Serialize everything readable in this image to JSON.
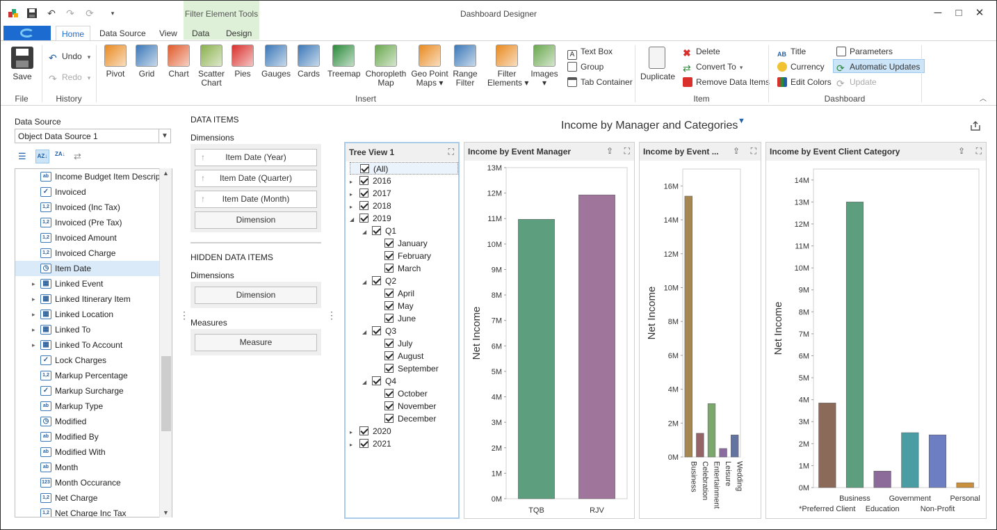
{
  "app": {
    "title": "Dashboard Designer",
    "context_group": "Filter Element Tools"
  },
  "tabs": [
    "Home",
    "Data Source",
    "View",
    "Data",
    "Design"
  ],
  "ribbon": {
    "save": "Save",
    "undo": "Undo",
    "redo": "Redo",
    "insert_items": [
      {
        "label": "Pivot"
      },
      {
        "label": "Grid"
      },
      {
        "label": "Chart"
      },
      {
        "label": "Scatter\nChart"
      },
      {
        "label": "Pies"
      },
      {
        "label": "Gauges"
      },
      {
        "label": "Cards"
      },
      {
        "label": "Treemap"
      },
      {
        "label": "Choropleth\nMap"
      },
      {
        "label": "Geo Point\nMaps ▾"
      },
      {
        "label": "Range\nFilter"
      },
      {
        "label": "Filter\nElements ▾"
      },
      {
        "label": "Images\n▾"
      }
    ],
    "text_box": "Text Box",
    "group": "Group",
    "tab_container": "Tab Container",
    "duplicate": "Duplicate",
    "delete": "Delete",
    "convert_to": "Convert To",
    "remove_data_items": "Remove Data Items",
    "title_btn": "Title",
    "currency": "Currency",
    "edit_colors": "Edit Colors",
    "parameters": "Parameters",
    "automatic_updates": "Automatic Updates",
    "update": "Update",
    "groups": {
      "file": "File",
      "history": "History",
      "insert": "Insert",
      "item": "Item",
      "dashboard": "Dashboard"
    }
  },
  "datasource": {
    "label": "Data Source",
    "value": "Object Data Source 1"
  },
  "fields": [
    {
      "label": "Income Budget Item Descript...",
      "icon": "ab"
    },
    {
      "label": "Invoiced",
      "icon": "check"
    },
    {
      "label": "Invoiced (Inc Tax)",
      "icon": "1,2"
    },
    {
      "label": "Invoiced (Pre Tax)",
      "icon": "1,2"
    },
    {
      "label": "Invoiced Amount",
      "icon": "1,2"
    },
    {
      "label": "Invoiced Charge",
      "icon": "1,2"
    },
    {
      "label": "Item Date",
      "icon": "clock"
    },
    {
      "label": "Linked Event",
      "icon": "table"
    },
    {
      "label": "Linked Itinerary Item",
      "icon": "table"
    },
    {
      "label": "Linked Location",
      "icon": "table"
    },
    {
      "label": "Linked To",
      "icon": "table"
    },
    {
      "label": "Linked To Account",
      "icon": "table"
    },
    {
      "label": "Lock Charges",
      "icon": "check"
    },
    {
      "label": "Markup Percentage",
      "icon": "1,2"
    },
    {
      "label": "Markup Surcharge",
      "icon": "check"
    },
    {
      "label": "Markup Type",
      "icon": "ab"
    },
    {
      "label": "Modified",
      "icon": "clock"
    },
    {
      "label": "Modified By",
      "icon": "ab"
    },
    {
      "label": "Modified With",
      "icon": "ab"
    },
    {
      "label": "Month",
      "icon": "ab"
    },
    {
      "label": "Month Occurance",
      "icon": "123"
    },
    {
      "label": "Net Charge",
      "icon": "1,2"
    },
    {
      "label": "Net Charge Inc Tax",
      "icon": "1,2"
    }
  ],
  "data_items": {
    "title": "DATA ITEMS",
    "dimensions_label": "Dimensions",
    "dimensions": [
      "Item Date (Year)",
      "Item Date (Quarter)",
      "Item Date (Month)"
    ],
    "dimension_placeholder": "Dimension",
    "hidden_title": "HIDDEN DATA ITEMS",
    "hidden_dimensions_label": "Dimensions",
    "hidden_dimension_placeholder": "Dimension",
    "measures_label": "Measures",
    "measure_placeholder": "Measure"
  },
  "dashboard_title": "Income by Manager and Categories",
  "tree_view": {
    "title": "Tree View 1",
    "items": [
      {
        "label": "(All)",
        "level": 0,
        "arrow": ""
      },
      {
        "label": "2016",
        "level": 0,
        "arrow": "▸"
      },
      {
        "label": "2017",
        "level": 0,
        "arrow": "▸"
      },
      {
        "label": "2018",
        "level": 0,
        "arrow": "▸"
      },
      {
        "label": "2019",
        "level": 0,
        "arrow": "◢"
      },
      {
        "label": "Q1",
        "level": 1,
        "arrow": "◢"
      },
      {
        "label": "January",
        "level": 2,
        "arrow": ""
      },
      {
        "label": "February",
        "level": 2,
        "arrow": ""
      },
      {
        "label": "March",
        "level": 2,
        "arrow": ""
      },
      {
        "label": "Q2",
        "level": 1,
        "arrow": "◢"
      },
      {
        "label": "April",
        "level": 2,
        "arrow": ""
      },
      {
        "label": "May",
        "level": 2,
        "arrow": ""
      },
      {
        "label": "June",
        "level": 2,
        "arrow": ""
      },
      {
        "label": "Q3",
        "level": 1,
        "arrow": "◢"
      },
      {
        "label": "July",
        "level": 2,
        "arrow": ""
      },
      {
        "label": "August",
        "level": 2,
        "arrow": ""
      },
      {
        "label": "September",
        "level": 2,
        "arrow": ""
      },
      {
        "label": "Q4",
        "level": 1,
        "arrow": "◢"
      },
      {
        "label": "October",
        "level": 2,
        "arrow": ""
      },
      {
        "label": "November",
        "level": 2,
        "arrow": ""
      },
      {
        "label": "December",
        "level": 2,
        "arrow": ""
      },
      {
        "label": "2020",
        "level": 0,
        "arrow": "▸"
      },
      {
        "label": "2021",
        "level": 0,
        "arrow": "▸"
      }
    ]
  },
  "panels": {
    "manager": "Income by Event Manager",
    "event": "Income by Event ...",
    "client": "Income by Event Client Category"
  },
  "chart_data": [
    {
      "type": "bar",
      "title": "Income by Event Manager",
      "ylabel": "Net Income",
      "categories": [
        "TQB",
        "RJV"
      ],
      "values": [
        10.97,
        11.93
      ],
      "ylim": [
        0,
        13
      ],
      "yticks": [
        "0M",
        "1M",
        "2M",
        "3M",
        "4M",
        "5M",
        "6M",
        "7M",
        "8M",
        "9M",
        "10M",
        "11M",
        "12M",
        "13M"
      ],
      "colors": [
        "#5d9e7e",
        "#a0759b"
      ]
    },
    {
      "type": "bar",
      "title": "Income by Event ...",
      "ylabel": "Net Income",
      "categories": [
        "Business",
        "Celebration",
        "Entertainment",
        "Leisure",
        "Wedding"
      ],
      "values": [
        15.4,
        1.4,
        3.15,
        0.5,
        1.3
      ],
      "ylim": [
        0,
        17
      ],
      "yticks": [
        "0M",
        "2M",
        "4M",
        "6M",
        "8M",
        "10M",
        "12M",
        "14M",
        "16M"
      ],
      "colors": [
        "#a68752",
        "#946466",
        "#7ca86e",
        "#8a6ca0",
        "#6474a0"
      ]
    },
    {
      "type": "bar",
      "title": "Income by Event Client Category",
      "ylabel": "Net Income",
      "categories": [
        "*Preferred Client",
        "Business",
        "Education",
        "Government",
        "Non-Profit",
        "Personal"
      ],
      "values": [
        3.85,
        13.0,
        0.75,
        2.5,
        2.4,
        0.22
      ],
      "ylim": [
        0,
        14.5
      ],
      "yticks": [
        "0M",
        "1M",
        "2M",
        "3M",
        "4M",
        "5M",
        "6M",
        "7M",
        "8M",
        "9M",
        "10M",
        "11M",
        "12M",
        "13M",
        "14M"
      ],
      "colors": [
        "#8c6a5a",
        "#5d9e7e",
        "#8c6a9a",
        "#4a9ea3",
        "#6e7ec3",
        "#c98f3c"
      ]
    }
  ]
}
